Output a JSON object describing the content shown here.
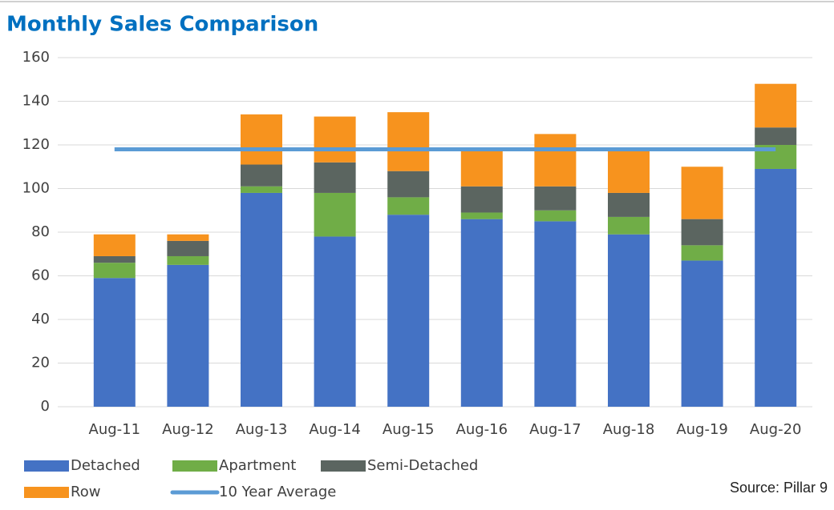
{
  "chart_data": {
    "type": "bar",
    "stacked": true,
    "title": "Monthly Sales Comparison",
    "source": "Source: Pillar 9",
    "categories": [
      "Aug-11",
      "Aug-12",
      "Aug-13",
      "Aug-14",
      "Aug-15",
      "Aug-16",
      "Aug-17",
      "Aug-18",
      "Aug-19",
      "Aug-20"
    ],
    "series": [
      {
        "name": "Detached",
        "color": "#4472c4",
        "values": [
          59,
          65,
          98,
          78,
          88,
          86,
          85,
          79,
          67,
          109
        ]
      },
      {
        "name": "Apartment",
        "color": "#70ad47",
        "values": [
          7,
          4,
          3,
          20,
          8,
          3,
          5,
          8,
          7,
          11
        ]
      },
      {
        "name": "Semi-Detached",
        "color": "#5b6560",
        "values": [
          3,
          7,
          10,
          14,
          12,
          12,
          11,
          11,
          12,
          8
        ]
      },
      {
        "name": "Row",
        "color": "#f7931e",
        "values": [
          10,
          3,
          23,
          21,
          27,
          17,
          24,
          20,
          24,
          20
        ]
      },
      {
        "name": "10 Year Average",
        "color": "#5b9bd5",
        "type": "line",
        "values": [
          118,
          118,
          118,
          118,
          118,
          118,
          118,
          118,
          118,
          118
        ]
      }
    ],
    "ylim": [
      0,
      160
    ],
    "yticks": [
      0,
      20,
      40,
      60,
      80,
      100,
      120,
      140,
      160
    ],
    "grid": true,
    "legend": "bottom"
  }
}
